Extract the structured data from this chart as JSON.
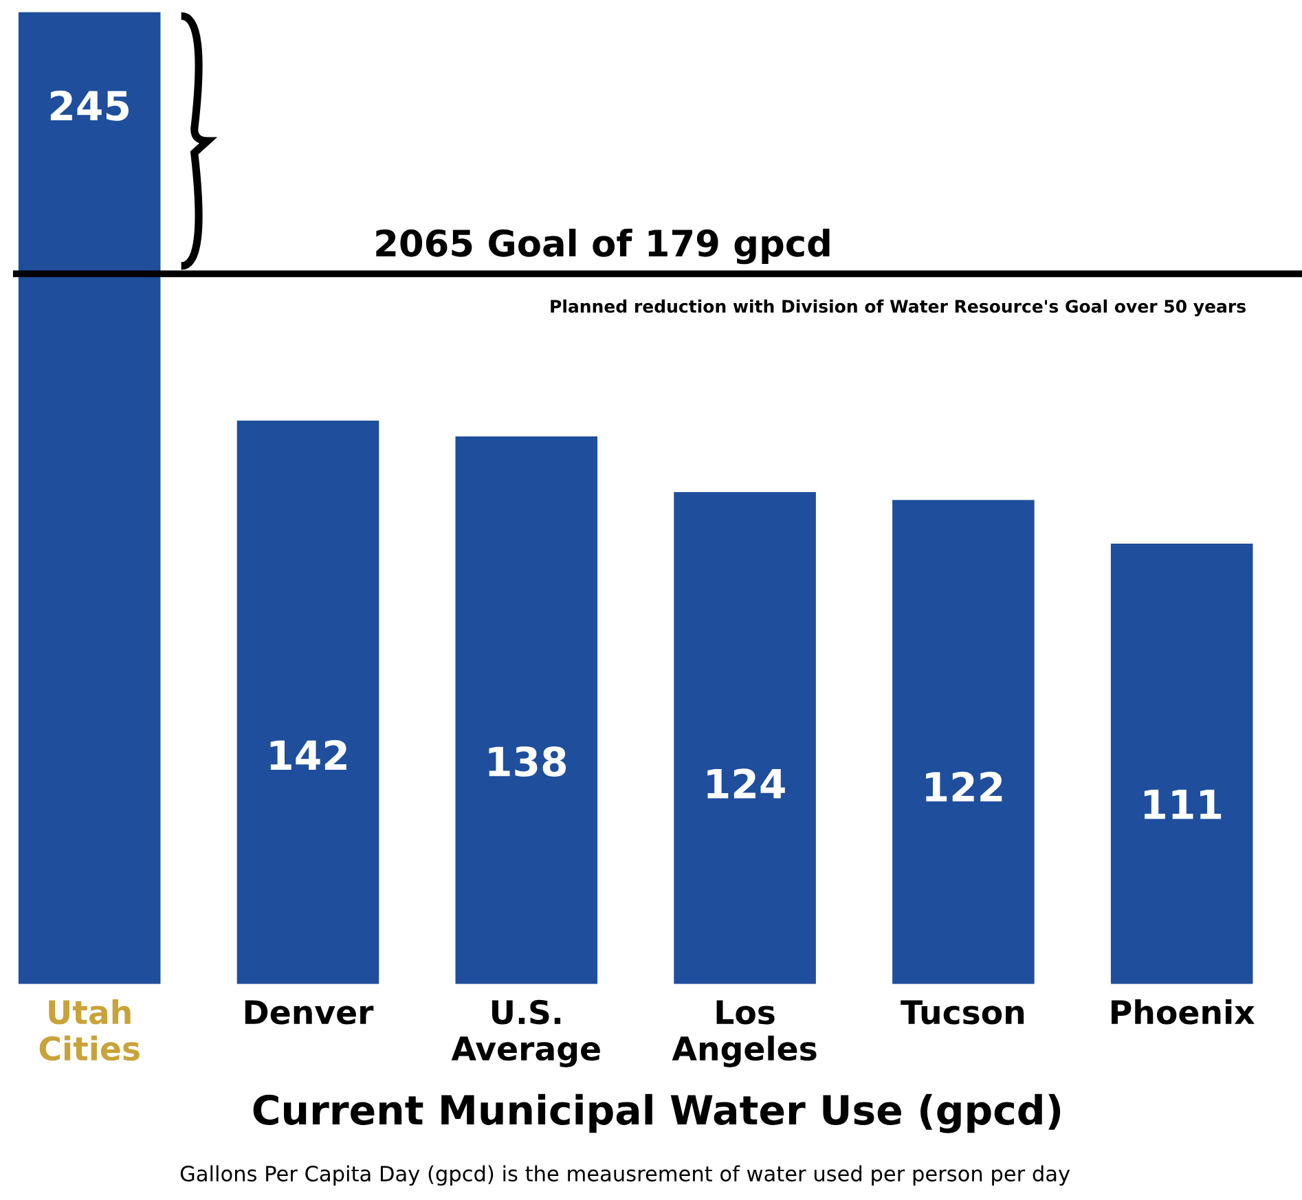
{
  "chart_data": {
    "type": "bar",
    "categories": [
      "Utah\nCities",
      "Denver",
      "U.S.\nAverage",
      "Los\nAngeles",
      "Tucson",
      "Phoenix"
    ],
    "values": [
      245,
      142,
      138,
      124,
      122,
      111
    ],
    "color": "#1f4e9c",
    "data_labels": true,
    "xlabel": "Current Municipal Water Use (gpcd)",
    "ref_lines": [
      {
        "axis": "y",
        "value": 179,
        "label": "2065 Goal of 179 gpcd",
        "color": "#000000"
      }
    ],
    "annotations": [
      "Planned reduction with Division of Water Resource's Goal over 50 years",
      "Gallons Per Capita Day (gpcd) is the meausrement of water used per person per day"
    ],
    "grid": false
  }
}
